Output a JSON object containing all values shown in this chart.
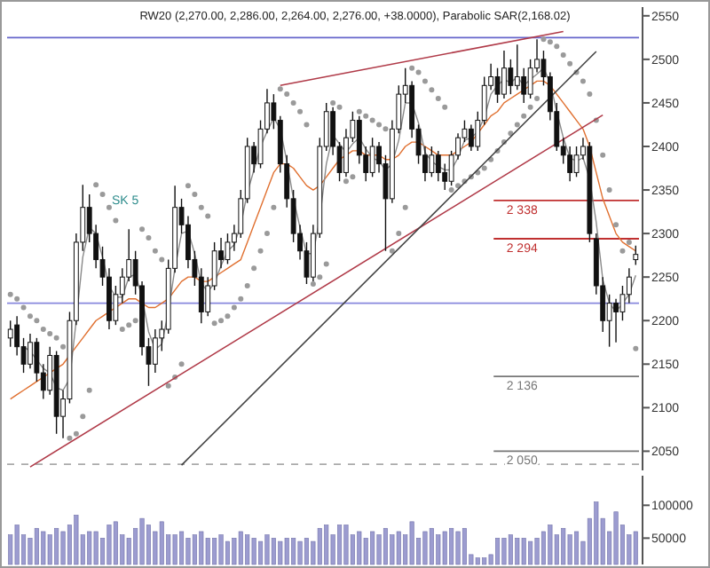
{
  "chart_data": [
    {
      "type": "candlestick",
      "title": "RW20 (2,270.00, 2,286.00, 2,264.00, 2,276.00, +38.0000), Parabolic SAR(2,168.02)",
      "categories": [
        null,
        null,
        null,
        null,
        null,
        null,
        null,
        null,
        null,
        null,
        null,
        null,
        null,
        null,
        null,
        null,
        null,
        null,
        null,
        null,
        null,
        null,
        null,
        null,
        null,
        null,
        null,
        null,
        null,
        null,
        null,
        null,
        null,
        null,
        null,
        null,
        null,
        null,
        null,
        null,
        null,
        null,
        null,
        null,
        null,
        null,
        null,
        null,
        null,
        null,
        null,
        null,
        null,
        null,
        null,
        null,
        null,
        null,
        null,
        null,
        null,
        null,
        null,
        null,
        null,
        null,
        null,
        null,
        null,
        null,
        null,
        null,
        null,
        null,
        null,
        null,
        null,
        null,
        null,
        null,
        null,
        null,
        null,
        null,
        null,
        null,
        null,
        null,
        null,
        null,
        null,
        null,
        null,
        null,
        null,
        null
      ],
      "ohlc": [
        [
          2180,
          2200,
          2170,
          2190
        ],
        [
          2195,
          2205,
          2160,
          2170
        ],
        [
          2170,
          2180,
          2140,
          2150
        ],
        [
          2150,
          2185,
          2145,
          2175
        ],
        [
          2175,
          2180,
          2130,
          2140
        ],
        [
          2140,
          2150,
          2110,
          2120
        ],
        [
          2120,
          2170,
          2115,
          2160
        ],
        [
          2160,
          2165,
          2070,
          2090
        ],
        [
          2090,
          2120,
          2065,
          2110
        ],
        [
          2110,
          2210,
          2105,
          2200
        ],
        [
          2200,
          2300,
          2195,
          2290
        ],
        [
          2290,
          2356,
          2280,
          2330
        ],
        [
          2330,
          2345,
          2290,
          2300
        ],
        [
          2300,
          2310,
          2260,
          2270
        ],
        [
          2270,
          2285,
          2240,
          2250
        ],
        [
          2250,
          2260,
          2190,
          2200
        ],
        [
          2200,
          2240,
          2195,
          2230
        ],
        [
          2230,
          2260,
          2220,
          2250
        ],
        [
          2250,
          2305,
          2245,
          2270
        ],
        [
          2270,
          2280,
          2230,
          2240
        ],
        [
          2240,
          2245,
          2160,
          2170
        ],
        [
          2170,
          2180,
          2125,
          2150
        ],
        [
          2150,
          2190,
          2140,
          2180
        ],
        [
          2180,
          2200,
          2165,
          2190
        ],
        [
          2190,
          2270,
          2185,
          2260
        ],
        [
          2260,
          2355,
          2255,
          2330
        ],
        [
          2330,
          2340,
          2300,
          2310
        ],
        [
          2310,
          2320,
          2260,
          2270
        ],
        [
          2270,
          2280,
          2240,
          2250
        ],
        [
          2250,
          2260,
          2197,
          2210
        ],
        [
          2210,
          2250,
          2205,
          2240
        ],
        [
          2240,
          2290,
          2235,
          2280
        ],
        [
          2280,
          2295,
          2260,
          2270
        ],
        [
          2270,
          2300,
          2265,
          2290
        ],
        [
          2290,
          2310,
          2280,
          2300
        ],
        [
          2300,
          2350,
          2295,
          2340
        ],
        [
          2340,
          2410,
          2335,
          2400
        ],
        [
          2400,
          2405,
          2370,
          2380
        ],
        [
          2380,
          2430,
          2375,
          2420
        ],
        [
          2420,
          2466,
          2415,
          2450
        ],
        [
          2450,
          2460,
          2420,
          2430
        ],
        [
          2430,
          2435,
          2370,
          2380
        ],
        [
          2380,
          2390,
          2330,
          2340
        ],
        [
          2340,
          2350,
          2290,
          2300
        ],
        [
          2300,
          2310,
          2270,
          2280
        ],
        [
          2280,
          2290,
          2242,
          2250
        ],
        [
          2250,
          2310,
          2245,
          2300
        ],
        [
          2300,
          2410,
          2295,
          2400
        ],
        [
          2400,
          2450,
          2395,
          2440
        ],
        [
          2440,
          2445,
          2390,
          2400
        ],
        [
          2400,
          2405,
          2360,
          2370
        ],
        [
          2370,
          2420,
          2365,
          2410
        ],
        [
          2410,
          2440,
          2405,
          2430
        ],
        [
          2430,
          2435,
          2380,
          2390
        ],
        [
          2390,
          2400,
          2360,
          2370
        ],
        [
          2370,
          2410,
          2365,
          2400
        ],
        [
          2400,
          2405,
          2370,
          2380
        ],
        [
          2380,
          2390,
          2280,
          2340
        ],
        [
          2340,
          2430,
          2335,
          2420
        ],
        [
          2420,
          2470,
          2415,
          2460
        ],
        [
          2460,
          2490,
          2450,
          2470
        ],
        [
          2470,
          2475,
          2410,
          2420
        ],
        [
          2420,
          2425,
          2380,
          2390
        ],
        [
          2390,
          2400,
          2360,
          2370
        ],
        [
          2370,
          2400,
          2365,
          2390
        ],
        [
          2390,
          2395,
          2360,
          2370
        ],
        [
          2370,
          2380,
          2350,
          2360
        ],
        [
          2360,
          2395,
          2355,
          2390
        ],
        [
          2390,
          2415,
          2385,
          2410
        ],
        [
          2410,
          2430,
          2405,
          2420
        ],
        [
          2420,
          2425,
          2395,
          2400
        ],
        [
          2400,
          2440,
          2395,
          2430
        ],
        [
          2430,
          2480,
          2425,
          2470
        ],
        [
          2470,
          2495,
          2465,
          2480
        ],
        [
          2480,
          2490,
          2450,
          2460
        ],
        [
          2460,
          2510,
          2455,
          2490
        ],
        [
          2490,
          2500,
          2460,
          2470
        ],
        [
          2470,
          2517,
          2465,
          2480
        ],
        [
          2480,
          2490,
          2450,
          2460
        ],
        [
          2460,
          2500,
          2455,
          2490
        ],
        [
          2490,
          2523,
          2485,
          2500
        ],
        [
          2500,
          2510,
          2470,
          2480
        ],
        [
          2480,
          2485,
          2430,
          2440
        ],
        [
          2440,
          2450,
          2395,
          2400
        ],
        [
          2400,
          2410,
          2380,
          2390
        ],
        [
          2390,
          2400,
          2360,
          2370
        ],
        [
          2370,
          2400,
          2365,
          2390
        ],
        [
          2390,
          2410,
          2385,
          2400
        ],
        [
          2400,
          2405,
          2290,
          2300
        ],
        [
          2294,
          2300,
          2230,
          2240
        ],
        [
          2240,
          2250,
          2187,
          2200
        ],
        [
          2200,
          2230,
          2170,
          2220
        ],
        [
          2220,
          2225,
          2175,
          2210
        ],
        [
          2210,
          2240,
          2200,
          2230
        ],
        [
          2230,
          2260,
          2220,
          2250
        ],
        [
          2270,
          2286,
          2264,
          2276
        ]
      ],
      "series": [
        {
          "type": "line",
          "color": "#e07030",
          "values": [
            2110,
            2115,
            2120,
            2125,
            2130,
            2135,
            2140,
            2145,
            2150,
            2160,
            2170,
            2180,
            2190,
            2200,
            2205,
            2210,
            2215,
            2220,
            2225,
            2225,
            2220,
            2215,
            2215,
            2220,
            2225,
            2235,
            2245,
            2250,
            2250,
            2245,
            2245,
            2250,
            2255,
            2260,
            2265,
            2270,
            2290,
            2310,
            2330,
            2350,
            2370,
            2380,
            2380,
            2375,
            2365,
            2355,
            2350,
            2355,
            2365,
            2375,
            2385,
            2390,
            2395,
            2395,
            2390,
            2390,
            2390,
            2385,
            2385,
            2390,
            2400,
            2405,
            2405,
            2400,
            2395,
            2390,
            2390,
            2390,
            2395,
            2400,
            2405,
            2415,
            2425,
            2435,
            2440,
            2450,
            2455,
            2460,
            2465,
            2470,
            2475,
            2475,
            2470,
            2460,
            2450,
            2440,
            2430,
            2420,
            2400,
            2370,
            2340,
            2320,
            2300,
            2290,
            2285,
            2280
          ]
        },
        {
          "type": "line",
          "color": "#8a8a8a",
          "values": [
            null,
            null,
            2170,
            2165,
            2155,
            2145,
            2140,
            2123,
            2120,
            2133,
            2200,
            2273,
            2307,
            2300,
            2273,
            2240,
            2227,
            2227,
            2250,
            2253,
            2227,
            2187,
            2167,
            2173,
            2210,
            2260,
            2300,
            2303,
            2277,
            2243,
            2233,
            2243,
            2263,
            2280,
            2287,
            2310,
            2347,
            2373,
            2400,
            2417,
            2433,
            2420,
            2383,
            2340,
            2307,
            2277,
            2277,
            2317,
            2380,
            2413,
            2403,
            2393,
            2403,
            2410,
            2397,
            2387,
            2383,
            2373,
            2380,
            2407,
            2450,
            2450,
            2427,
            2393,
            2383,
            2377,
            2373,
            2373,
            2387,
            2407,
            2410,
            2417,
            2433,
            2460,
            2470,
            2477,
            2473,
            2480,
            2470,
            2477,
            2483,
            2490,
            2473,
            2440,
            2410,
            2387,
            2383,
            2387,
            2363,
            2313,
            2247,
            2220,
            2210,
            2220,
            2230,
            2252
          ]
        },
        {
          "type": "scatter",
          "marker": "circle",
          "color": "#9a9a9a",
          "values": [
            2230,
            2225,
            2215,
            2205,
            2200,
            2190,
            2185,
            2180,
            2170,
            2065,
            2070,
            2090,
            2120,
            2356,
            2345,
            2330,
            2315,
            2190,
            2195,
            2200,
            2305,
            2295,
            2280,
            2270,
            2125,
            2135,
            2150,
            2355,
            2345,
            2330,
            2320,
            2197,
            2200,
            2205,
            2215,
            2225,
            2240,
            2260,
            2280,
            2300,
            2330,
            2466,
            2460,
            2450,
            2440,
            2425,
            2242,
            2250,
            2265,
            2450,
            2445,
            2360,
            2365,
            2440,
            2435,
            2430,
            2425,
            2420,
            2280,
            2300,
            2330,
            2490,
            2485,
            2475,
            2465,
            2455,
            2445,
            2350,
            2355,
            2360,
            2365,
            2370,
            2375,
            2385,
            2395,
            2405,
            2415,
            2425,
            2435,
            2445,
            2455,
            2523,
            2520,
            2515,
            2505,
            2495,
            2485,
            2475,
            2460,
            2430,
            2390,
            2350,
            2310,
            2280,
            2290,
            2168
          ]
        },
        {
          "type": "line",
          "color": "#b03a48",
          "values": [
            null,
            null,
            null,
            2032,
            null,
            null,
            null,
            null,
            null,
            null,
            null,
            null,
            null,
            null,
            null,
            null,
            null,
            null,
            null,
            null,
            null,
            null,
            null,
            null,
            null,
            null,
            null,
            null,
            null,
            null,
            null,
            null,
            null,
            null,
            null,
            null,
            null,
            null,
            null,
            null,
            null,
            null,
            null,
            null,
            null,
            null,
            null,
            null,
            null,
            null,
            null,
            null,
            null,
            null,
            null,
            null,
            null,
            null,
            null,
            null,
            null,
            null,
            null,
            null,
            null,
            null,
            null,
            null,
            null,
            null,
            null,
            null,
            null,
            null,
            null,
            null,
            null,
            null,
            null,
            null,
            null,
            null,
            null,
            null,
            null,
            null,
            null,
            null,
            null,
            null,
            2436,
            null,
            null,
            null,
            null,
            null
          ]
        },
        {
          "type": "line",
          "color": "#b03a48",
          "values": [
            null,
            null,
            null,
            null,
            null,
            null,
            null,
            null,
            null,
            null,
            null,
            null,
            null,
            null,
            null,
            null,
            null,
            null,
            null,
            null,
            null,
            null,
            null,
            null,
            null,
            null,
            null,
            null,
            null,
            null,
            null,
            null,
            null,
            null,
            null,
            null,
            null,
            null,
            null,
            null,
            null,
            2470,
            null,
            null,
            null,
            null,
            null,
            null,
            null,
            null,
            null,
            null,
            null,
            null,
            null,
            null,
            null,
            null,
            null,
            null,
            null,
            null,
            null,
            null,
            null,
            null,
            null,
            null,
            null,
            null,
            null,
            null,
            null,
            null,
            null,
            null,
            null,
            null,
            null,
            null,
            null,
            null,
            null,
            null,
            2532,
            null,
            null,
            null,
            null,
            null,
            null,
            null,
            null,
            null,
            null,
            null
          ]
        },
        {
          "type": "line",
          "color": "#444444",
          "values": [
            null,
            null,
            null,
            null,
            null,
            null,
            null,
            null,
            null,
            null,
            null,
            null,
            null,
            null,
            null,
            null,
            null,
            null,
            null,
            null,
            null,
            null,
            null,
            null,
            null,
            null,
            2034,
            null,
            null,
            null,
            null,
            null,
            null,
            null,
            null,
            null,
            null,
            null,
            null,
            null,
            null,
            null,
            null,
            null,
            null,
            null,
            null,
            null,
            null,
            null,
            null,
            null,
            null,
            null,
            null,
            null,
            null,
            null,
            null,
            null,
            null,
            null,
            null,
            null,
            null,
            null,
            null,
            null,
            null,
            null,
            null,
            null,
            null,
            null,
            null,
            null,
            null,
            null,
            null,
            null,
            null,
            null,
            null,
            null,
            null,
            null,
            null,
            null,
            null,
            2509,
            null,
            null,
            null,
            null,
            null,
            null
          ]
        }
      ],
      "ylim": [
        2028,
        2560
      ],
      "yticks": [
        2050,
        2100,
        2150,
        2200,
        2250,
        2300,
        2350,
        2400,
        2450,
        2500,
        2550
      ],
      "ref_lines": [
        {
          "axis": "y",
          "value": 2525,
          "color": "#6666cc"
        },
        {
          "axis": "y",
          "value": 2220,
          "color": "#8888dd"
        },
        {
          "axis": "y",
          "value": 2035,
          "color": "#aaaaaa",
          "line_style": "dashed"
        },
        {
          "axis": "y",
          "value": 2338,
          "label": "2 338",
          "color": "#c03030"
        },
        {
          "axis": "y",
          "value": 2294,
          "label": "2 294",
          "color": "#c03030"
        },
        {
          "axis": "y",
          "value": 2136,
          "label": "2 136",
          "color": "#777777"
        },
        {
          "axis": "y",
          "value": 2050,
          "label": "2 050",
          "color": "#777777"
        }
      ],
      "annotations": [
        "SK 5"
      ]
    },
    {
      "type": "bar",
      "categories": [
        null,
        null,
        null,
        null,
        null,
        null,
        null,
        null,
        null,
        null,
        null,
        null,
        null,
        null,
        null,
        null,
        null,
        null,
        null,
        null,
        null,
        null,
        null,
        null,
        null,
        null,
        null,
        null,
        null,
        null,
        null,
        null,
        null,
        null,
        null,
        null,
        null,
        null,
        null,
        null,
        null,
        null,
        null,
        null,
        null,
        null,
        null,
        null,
        null,
        null,
        null,
        null,
        null,
        null,
        null,
        null,
        null,
        null,
        null,
        null,
        null,
        null,
        null,
        null,
        null,
        null,
        null,
        null,
        null,
        null,
        null,
        null,
        null,
        null,
        null,
        null,
        null,
        null,
        null,
        null,
        null,
        null,
        null,
        null,
        null,
        null,
        null,
        null,
        null,
        null,
        null,
        null,
        null,
        null,
        null,
        null
      ],
      "values": [
        55000,
        70000,
        55000,
        50000,
        65000,
        60000,
        55000,
        65000,
        60000,
        70000,
        85000,
        55000,
        60000,
        60000,
        50000,
        70000,
        75000,
        55000,
        50000,
        65000,
        80000,
        70000,
        60000,
        75000,
        55000,
        55000,
        60000,
        50000,
        55000,
        60000,
        50000,
        50000,
        55000,
        45000,
        50000,
        60000,
        55000,
        50000,
        45000,
        55000,
        50000,
        45000,
        50000,
        50000,
        45000,
        50000,
        45000,
        65000,
        70000,
        55000,
        70000,
        70000,
        55000,
        60000,
        50000,
        60000,
        55000,
        65000,
        55000,
        60000,
        55000,
        75000,
        50000,
        60000,
        65000,
        55000,
        60000,
        65000,
        60000,
        65000,
        25000,
        20000,
        20000,
        25000,
        50000,
        50000,
        55000,
        50000,
        50000,
        45000,
        50000,
        60000,
        70000,
        55000,
        65000,
        55000,
        60000,
        45000,
        80000,
        105000,
        80000,
        60000,
        90000,
        70000,
        55000,
        60000
      ],
      "color": "#9c9cd0",
      "ylim": [
        10000,
        145000
      ],
      "yticks": [
        50000,
        100000
      ]
    }
  ]
}
